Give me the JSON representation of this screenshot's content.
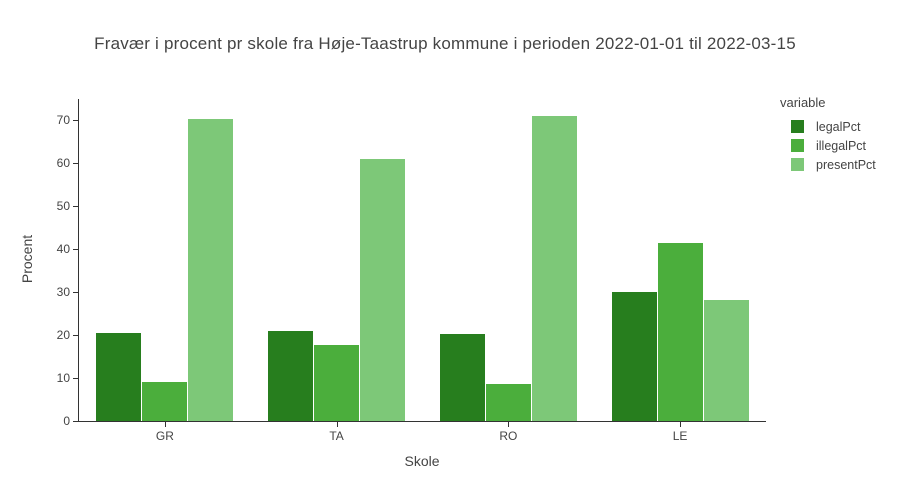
{
  "chart_data": {
    "type": "bar",
    "layout": "grouped",
    "title": "Fravær i procent pr skole fra Høje-Taastrup kommune i perioden 2022-01-01 til 2022-03-15",
    "categories": [
      "GR",
      "TA",
      "RO",
      "LE"
    ],
    "series": [
      {
        "name": "legalPct",
        "color": "#277e1e",
        "values": [
          20.4,
          21.0,
          20.2,
          30.1
        ]
      },
      {
        "name": "illegalPct",
        "color": "#4bae3c",
        "values": [
          9.1,
          17.6,
          8.6,
          41.4
        ]
      },
      {
        "name": "presentPct",
        "color": "#7dc878",
        "values": [
          70.2,
          60.9,
          70.9,
          28.2
        ]
      }
    ],
    "xlabel": "Skole",
    "ylabel": "Procent",
    "ylim": [
      0,
      74.9
    ],
    "yticks": [
      0,
      10,
      20,
      30,
      40,
      50,
      60,
      70
    ],
    "grid": false,
    "legend": {
      "title": "variable",
      "position": "right"
    }
  },
  "colors": {
    "background": "#ffffff",
    "text": "#444444",
    "axis_line": "#333333"
  }
}
